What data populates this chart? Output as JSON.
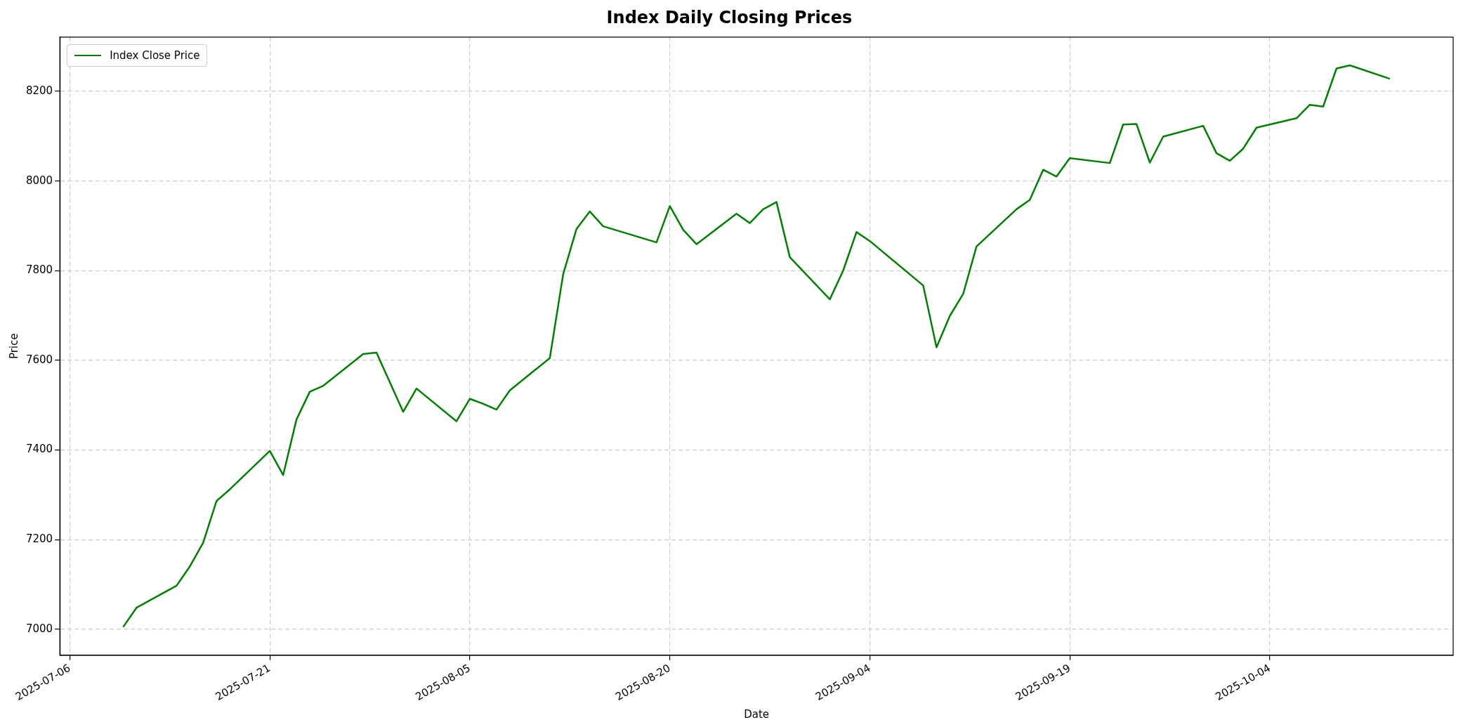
{
  "chart_data": {
    "type": "line",
    "title": "Index Daily Closing Prices",
    "xlabel": "Date",
    "ylabel": "Price",
    "x": [
      "2025-07-10",
      "2025-07-11",
      "2025-07-14",
      "2025-07-15",
      "2025-07-16",
      "2025-07-17",
      "2025-07-18",
      "2025-07-21",
      "2025-07-22",
      "2025-07-23",
      "2025-07-24",
      "2025-07-25",
      "2025-07-28",
      "2025-07-29",
      "2025-07-31",
      "2025-08-01",
      "2025-08-04",
      "2025-08-05",
      "2025-08-06",
      "2025-08-07",
      "2025-08-08",
      "2025-08-11",
      "2025-08-12",
      "2025-08-13",
      "2025-08-14",
      "2025-08-15",
      "2025-08-19",
      "2025-08-20",
      "2025-08-21",
      "2025-08-22",
      "2025-08-25",
      "2025-08-26",
      "2025-08-27",
      "2025-08-28",
      "2025-08-29",
      "2025-09-01",
      "2025-09-02",
      "2025-09-03",
      "2025-09-04",
      "2025-09-08",
      "2025-09-09",
      "2025-09-10",
      "2025-09-11",
      "2025-09-12",
      "2025-09-15",
      "2025-09-16",
      "2025-09-17",
      "2025-09-18",
      "2025-09-19",
      "2025-09-22",
      "2025-09-23",
      "2025-09-24",
      "2025-09-25",
      "2025-09-26",
      "2025-09-29",
      "2025-09-30",
      "2025-10-01",
      "2025-10-02",
      "2025-10-03",
      "2025-10-06",
      "2025-10-07",
      "2025-10-08",
      "2025-10-09",
      "2025-10-10",
      "2025-10-13"
    ],
    "series": [
      {
        "name": "Index Close Price",
        "color": "#008000",
        "values": [
          7005,
          7048,
          7097,
          7140,
          7193,
          7286,
          7312,
          7398,
          7344,
          7468,
          7530,
          7543,
          7614,
          7617,
          7485,
          7537,
          7464,
          7514,
          7503,
          7490,
          7533,
          7605,
          7792,
          7893,
          7932,
          7899,
          7863,
          7944,
          7891,
          7859,
          7927,
          7906,
          7937,
          7953,
          7830,
          7736,
          7800,
          7886,
          7866,
          7767,
          7629,
          7699,
          7748,
          7854,
          7937,
          7958,
          8025,
          8010,
          8051,
          8040,
          8126,
          8127,
          8041,
          8099,
          8123,
          8062,
          8045,
          8072,
          8119,
          8140,
          8170,
          8166,
          8251,
          8258,
          8228
        ]
      }
    ],
    "xlim": [
      "2025-07-05T06:00",
      "2025-10-17T18:00"
    ],
    "xticks": [
      "2025-07-06",
      "2025-07-21",
      "2025-08-05",
      "2025-08-20",
      "2025-09-04",
      "2025-09-19",
      "2025-10-04"
    ],
    "ylim": [
      6942,
      8321
    ],
    "yticks": [
      7000,
      7200,
      7400,
      7600,
      7800,
      8000,
      8200
    ],
    "grid": true,
    "legend": "top left",
    "marker": "none",
    "line_style": "solid"
  }
}
